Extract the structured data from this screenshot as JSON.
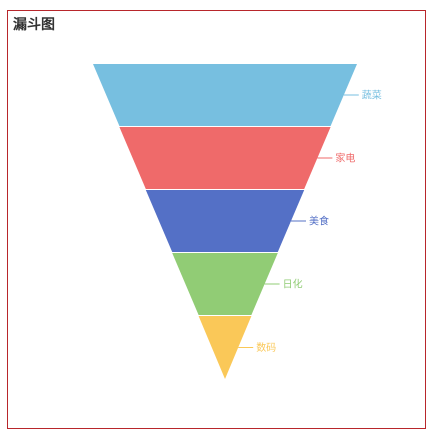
{
  "chart_data": {
    "type": "funnel",
    "title": "漏斗图",
    "categories": [
      "蔬菜",
      "家电",
      "美食",
      "日化",
      "数码"
    ],
    "values": [
      100,
      80,
      60,
      40,
      20
    ],
    "colors": [
      "#77bfe0",
      "#ef6a6a",
      "#5470c6",
      "#91cc75",
      "#fac858"
    ],
    "sort": "descending",
    "label_position": "right",
    "legend": "none"
  }
}
